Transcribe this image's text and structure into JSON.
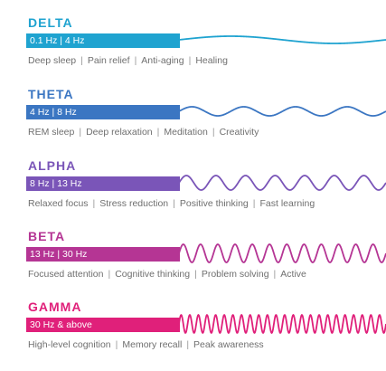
{
  "bands": [
    {
      "key": "delta",
      "name": "DELTA",
      "range": "0.1 Hz | 4 Hz",
      "color": "#1fa3d0",
      "uses": [
        "Deep sleep",
        "Pain relief",
        "Anti-aging",
        "Healing"
      ],
      "wave_cycles": 1,
      "wave_amplitude": 4
    },
    {
      "key": "theta",
      "name": "THETA",
      "range": "4 Hz | 8 Hz",
      "color": "#3b76c2",
      "uses": [
        "REM sleep",
        "Deep relaxation",
        "Meditation",
        "Creativity"
      ],
      "wave_cycles": 4,
      "wave_amplitude": 5
    },
    {
      "key": "alpha",
      "name": "ALPHA",
      "range": "8 Hz | 13 Hz",
      "color": "#7a55b8",
      "uses": [
        "Relaxed focus",
        "Stress reduction",
        "Positive thinking",
        "Fast learning"
      ],
      "wave_cycles": 7,
      "wave_amplitude": 8
    },
    {
      "key": "beta",
      "name": "BETA",
      "range": "13 Hz | 30 Hz",
      "color": "#b53594",
      "uses": [
        "Focused attention",
        "Cognitive thinking",
        "Problem solving",
        "Active"
      ],
      "wave_cycles": 12,
      "wave_amplitude": 10
    },
    {
      "key": "gamma",
      "name": "GAMMA",
      "range": "30 Hz & above",
      "color": "#e0207a",
      "uses": [
        "High-level cognition",
        "Memory recall",
        "Peak awareness"
      ],
      "wave_cycles": 24,
      "wave_amplitude": 10
    }
  ]
}
